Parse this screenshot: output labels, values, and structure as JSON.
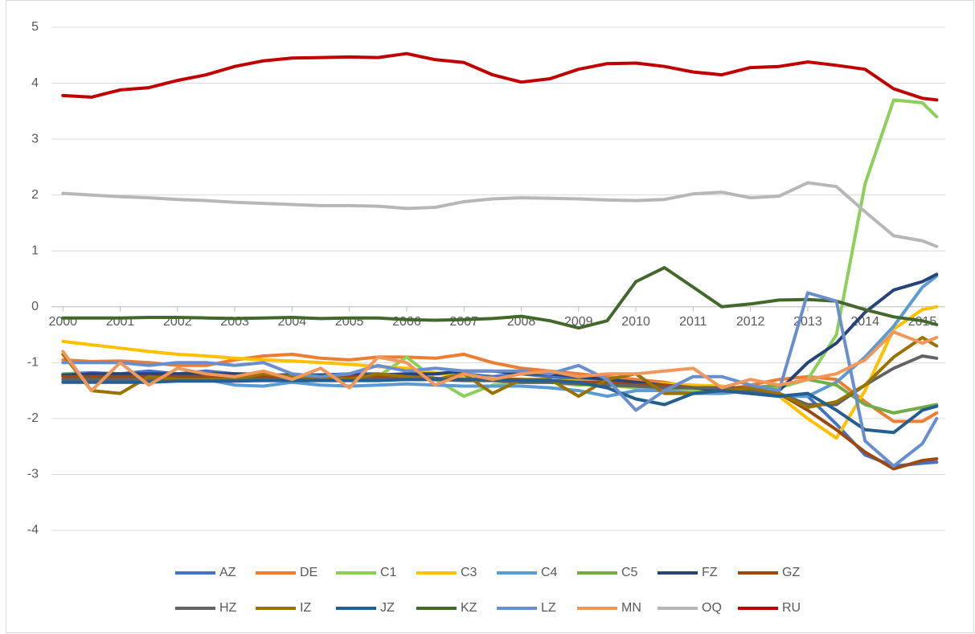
{
  "chart_data": {
    "type": "line",
    "x": [
      2000,
      2000.5,
      2001,
      2001.5,
      2002,
      2002.5,
      2003,
      2003.5,
      2004,
      2004.5,
      2005,
      2005.5,
      2006,
      2006.5,
      2007,
      2007.5,
      2008,
      2008.5,
      2009,
      2009.5,
      2010,
      2010.5,
      2011,
      2011.5,
      2012,
      2012.5,
      2013,
      2013.5,
      2014,
      2014.5,
      2015,
      2015.25
    ],
    "xlim": [
      1999.8,
      2015.4
    ],
    "xticks": [
      2000,
      2001,
      2002,
      2003,
      2004,
      2005,
      2006,
      2007,
      2008,
      2009,
      2010,
      2011,
      2012,
      2013,
      2014,
      2015
    ],
    "ylim": [
      -4,
      5
    ],
    "yticks": [
      -4,
      -3,
      -2,
      -1,
      0,
      1,
      2,
      3,
      4,
      5
    ],
    "grid": true,
    "legend": "bottom",
    "series": [
      {
        "name": "AZ",
        "color": "#4472c4",
        "values": [
          -1.2,
          -1.18,
          -1.2,
          -1.15,
          -1.2,
          -1.15,
          -1.2,
          -1.2,
          -1.25,
          -1.22,
          -1.2,
          -1.2,
          -1.25,
          -1.2,
          -1.2,
          -1.25,
          -1.2,
          -1.25,
          -1.3,
          -1.35,
          -1.4,
          -1.45,
          -1.5,
          -1.5,
          -1.55,
          -1.6,
          -1.6,
          -2.1,
          -2.65,
          -2.85,
          -2.8,
          -2.78
        ]
      },
      {
        "name": "DE",
        "color": "#ed7d31",
        "values": [
          -0.95,
          -0.98,
          -0.97,
          -1.0,
          -1.05,
          -1.05,
          -0.95,
          -0.88,
          -0.85,
          -0.92,
          -0.95,
          -0.9,
          -0.9,
          -0.92,
          -0.85,
          -1.0,
          -1.1,
          -1.15,
          -1.2,
          -1.25,
          -1.3,
          -1.35,
          -1.45,
          -1.5,
          -1.4,
          -1.3,
          -1.25,
          -1.3,
          -1.7,
          -2.05,
          -2.05,
          -1.9
        ]
      },
      {
        "name": "C1",
        "color": "#8cd05a",
        "values": [
          -1.2,
          -1.2,
          -1.2,
          -1.22,
          -1.22,
          -1.22,
          -1.25,
          -1.25,
          -1.25,
          -1.25,
          -1.25,
          -1.25,
          -0.9,
          -1.3,
          -1.6,
          -1.4,
          -1.35,
          -1.35,
          -1.4,
          -1.4,
          -1.45,
          -1.45,
          -1.5,
          -1.5,
          -1.5,
          -1.45,
          -1.3,
          -0.5,
          2.2,
          3.7,
          3.65,
          3.4
        ]
      },
      {
        "name": "C3",
        "color": "#ffc000",
        "values": [
          -0.62,
          -0.68,
          -0.74,
          -0.8,
          -0.85,
          -0.88,
          -0.92,
          -0.95,
          -0.97,
          -1.0,
          -1.03,
          -1.07,
          -1.1,
          -1.18,
          -1.25,
          -1.28,
          -1.3,
          -1.32,
          -1.33,
          -1.35,
          -1.37,
          -1.38,
          -1.4,
          -1.42,
          -1.5,
          -1.6,
          -2.0,
          -2.35,
          -1.5,
          -0.4,
          -0.05,
          0.0
        ]
      },
      {
        "name": "C4",
        "color": "#5b9bd5",
        "values": [
          -1.25,
          -1.25,
          -1.3,
          -1.3,
          -1.3,
          -1.3,
          -1.4,
          -1.42,
          -1.35,
          -1.4,
          -1.42,
          -1.4,
          -1.38,
          -1.4,
          -1.42,
          -1.42,
          -1.42,
          -1.45,
          -1.5,
          -1.6,
          -1.5,
          -1.5,
          -1.55,
          -1.55,
          -1.5,
          -1.6,
          -1.6,
          -1.35,
          -0.9,
          -0.35,
          0.35,
          0.55
        ]
      },
      {
        "name": "C5",
        "color": "#70ad47",
        "values": [
          -1.22,
          -1.22,
          -1.25,
          -1.25,
          -1.25,
          -1.25,
          -1.25,
          -1.25,
          -1.28,
          -1.28,
          -1.28,
          -1.28,
          -1.3,
          -1.3,
          -1.3,
          -1.3,
          -1.35,
          -1.35,
          -1.35,
          -1.35,
          -1.4,
          -1.4,
          -1.45,
          -1.45,
          -1.45,
          -1.4,
          -1.3,
          -1.4,
          -1.75,
          -1.9,
          -1.8,
          -1.75
        ]
      },
      {
        "name": "FZ",
        "color": "#264478",
        "values": [
          -1.22,
          -1.2,
          -1.2,
          -1.2,
          -1.2,
          -1.2,
          -1.2,
          -1.22,
          -1.22,
          -1.22,
          -1.22,
          -1.22,
          -1.2,
          -1.2,
          -1.15,
          -1.15,
          -1.2,
          -1.2,
          -1.25,
          -1.3,
          -1.35,
          -1.4,
          -1.45,
          -1.5,
          -1.5,
          -1.5,
          -1.0,
          -0.65,
          -0.1,
          0.3,
          0.45,
          0.58
        ]
      },
      {
        "name": "GZ",
        "color": "#9e480e",
        "values": [
          -1.25,
          -1.25,
          -1.25,
          -1.25,
          -1.25,
          -1.25,
          -1.25,
          -1.25,
          -1.25,
          -1.25,
          -1.25,
          -1.25,
          -1.25,
          -1.28,
          -1.3,
          -1.3,
          -1.3,
          -1.32,
          -1.35,
          -1.35,
          -1.4,
          -1.4,
          -1.45,
          -1.45,
          -1.45,
          -1.55,
          -1.85,
          -2.2,
          -2.6,
          -2.9,
          -2.75,
          -2.72
        ]
      },
      {
        "name": "HZ",
        "color": "#636363",
        "values": [
          -1.3,
          -1.3,
          -1.3,
          -1.3,
          -1.3,
          -1.3,
          -1.3,
          -1.3,
          -1.3,
          -1.3,
          -1.3,
          -1.3,
          -1.3,
          -1.3,
          -1.32,
          -1.32,
          -1.35,
          -1.35,
          -1.38,
          -1.4,
          -1.42,
          -1.45,
          -1.45,
          -1.45,
          -1.5,
          -1.55,
          -1.75,
          -1.75,
          -1.4,
          -1.1,
          -0.88,
          -0.92
        ]
      },
      {
        "name": "IZ",
        "color": "#997300",
        "values": [
          -0.85,
          -1.5,
          -1.55,
          -1.25,
          -1.3,
          -1.3,
          -1.3,
          -1.2,
          -1.25,
          -1.25,
          -1.3,
          -1.2,
          -1.25,
          -1.3,
          -1.2,
          -1.55,
          -1.3,
          -1.3,
          -1.6,
          -1.3,
          -1.2,
          -1.55,
          -1.55,
          -1.5,
          -1.45,
          -1.55,
          -1.8,
          -1.7,
          -1.4,
          -0.9,
          -0.55,
          -0.7
        ]
      },
      {
        "name": "JZ",
        "color": "#255e91",
        "values": [
          -1.35,
          -1.35,
          -1.35,
          -1.35,
          -1.33,
          -1.33,
          -1.33,
          -1.32,
          -1.32,
          -1.32,
          -1.32,
          -1.32,
          -1.3,
          -1.3,
          -1.3,
          -1.3,
          -1.32,
          -1.32,
          -1.35,
          -1.45,
          -1.65,
          -1.75,
          -1.55,
          -1.5,
          -1.55,
          -1.6,
          -1.55,
          -1.85,
          -2.2,
          -2.25,
          -1.85,
          -1.78
        ]
      },
      {
        "name": "KZ",
        "color": "#43682b",
        "values": [
          -0.2,
          -0.2,
          -0.2,
          -0.19,
          -0.19,
          -0.2,
          -0.21,
          -0.2,
          -0.19,
          -0.21,
          -0.2,
          -0.2,
          -0.23,
          -0.24,
          -0.23,
          -0.21,
          -0.17,
          -0.25,
          -0.38,
          -0.25,
          0.45,
          0.7,
          0.35,
          0.0,
          0.05,
          0.12,
          0.13,
          0.1,
          -0.05,
          -0.18,
          -0.25,
          -0.32
        ]
      },
      {
        "name": "LZ",
        "color": "#698ed0",
        "values": [
          -1.0,
          -1.0,
          -1.0,
          -1.05,
          -1.0,
          -1.0,
          -1.05,
          -1.0,
          -1.2,
          -1.25,
          -1.2,
          -1.05,
          -1.15,
          -1.1,
          -1.15,
          -1.15,
          -1.15,
          -1.2,
          -1.05,
          -1.3,
          -1.85,
          -1.5,
          -1.25,
          -1.25,
          -1.4,
          -1.5,
          0.25,
          0.1,
          -2.4,
          -2.85,
          -2.45,
          -2.0
        ]
      },
      {
        "name": "MN",
        "color": "#f1975a",
        "values": [
          -0.8,
          -1.5,
          -1.0,
          -1.4,
          -1.1,
          -1.2,
          -1.25,
          -1.15,
          -1.3,
          -1.1,
          -1.45,
          -0.9,
          -1.0,
          -1.4,
          -1.2,
          -1.3,
          -1.2,
          -1.15,
          -1.25,
          -1.2,
          -1.2,
          -1.15,
          -1.1,
          -1.45,
          -1.3,
          -1.4,
          -1.3,
          -1.2,
          -0.95,
          -0.45,
          -0.65,
          -0.55
        ]
      },
      {
        "name": "OQ",
        "color": "#b7b7b7",
        "values": [
          2.03,
          2.0,
          1.97,
          1.95,
          1.92,
          1.9,
          1.87,
          1.85,
          1.83,
          1.81,
          1.81,
          1.8,
          1.76,
          1.78,
          1.88,
          1.93,
          1.95,
          1.94,
          1.93,
          1.91,
          1.9,
          1.92,
          2.02,
          2.05,
          1.95,
          1.98,
          2.22,
          2.15,
          1.7,
          1.27,
          1.18,
          1.08
        ]
      },
      {
        "name": "RU",
        "color": "#c00000",
        "values": [
          3.78,
          3.75,
          3.88,
          3.92,
          4.05,
          4.15,
          4.3,
          4.4,
          4.45,
          4.46,
          4.47,
          4.46,
          4.53,
          4.42,
          4.37,
          4.15,
          4.02,
          4.08,
          4.25,
          4.35,
          4.36,
          4.3,
          4.2,
          4.15,
          4.28,
          4.3,
          4.38,
          4.32,
          4.25,
          3.9,
          3.73,
          3.7
        ]
      }
    ]
  }
}
